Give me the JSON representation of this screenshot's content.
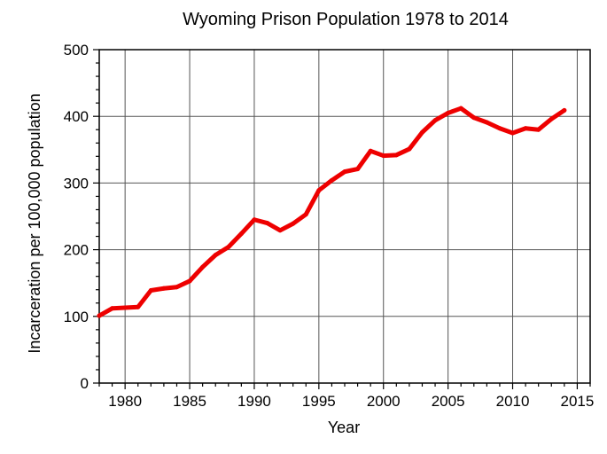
{
  "chart_data": {
    "type": "line",
    "title": "Wyoming Prison Population 1978 to 2014",
    "xlabel": "Year",
    "ylabel": "Incarceration per 100,000 population",
    "xlim": [
      1978,
      2016
    ],
    "ylim": [
      0,
      500
    ],
    "xticks": [
      1980,
      1985,
      1990,
      1995,
      2000,
      2005,
      2010,
      2015
    ],
    "yticks": [
      0,
      100,
      200,
      300,
      400,
      500
    ],
    "grid": true,
    "color": "#ee0000",
    "series": [
      {
        "x": [
          1978,
          1979,
          1980,
          1981,
          1982,
          1983,
          1984,
          1985,
          1986,
          1987,
          1988,
          1989,
          1990,
          1991,
          1992,
          1993,
          1994,
          1995,
          1996,
          1997,
          1998,
          1999,
          2000,
          2001,
          2002,
          2003,
          2004,
          2005,
          2006,
          2007,
          2008,
          2009,
          2010,
          2011,
          2012,
          2013,
          2014
        ],
        "values": [
          101,
          112,
          113,
          114,
          139,
          142,
          144,
          153,
          174,
          192,
          204,
          224,
          245,
          240,
          229,
          239,
          253,
          289,
          304,
          317,
          321,
          348,
          341,
          342,
          351,
          376,
          394,
          405,
          412,
          398,
          391,
          382,
          375,
          382,
          380,
          396,
          409
        ]
      }
    ]
  }
}
